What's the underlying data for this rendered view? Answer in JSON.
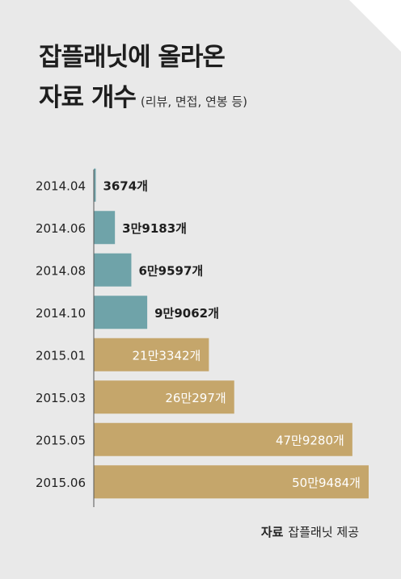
{
  "title": {
    "line1": "잡플래닛에 올라온",
    "line2": "자료 개수",
    "subtitle": "(리뷰, 면접, 연봉 등)"
  },
  "source": {
    "label": "자료",
    "text": "잡플래닛 제공"
  },
  "colors": {
    "background": "#e9e9e9",
    "bar_2014": "#6fa3a9",
    "bar_2015": "#c5a66b",
    "label_dark": "#1e1e1e",
    "label_light": "#ffffff"
  },
  "chart_data": {
    "type": "bar",
    "orientation": "horizontal",
    "categories": [
      "2014.04",
      "2014.06",
      "2014.08",
      "2014.10",
      "2015.01",
      "2015.03",
      "2015.05",
      "2015.06"
    ],
    "values": [
      3674,
      39183,
      69597,
      99062,
      213342,
      260297,
      479280,
      509484
    ],
    "data_labels": [
      "3674개",
      "3만9183개",
      "6만9597개",
      "9만9062개",
      "21만3342개",
      "26만297개",
      "47만9280개",
      "50만9484개"
    ],
    "xlim": [
      0,
      509484
    ]
  }
}
